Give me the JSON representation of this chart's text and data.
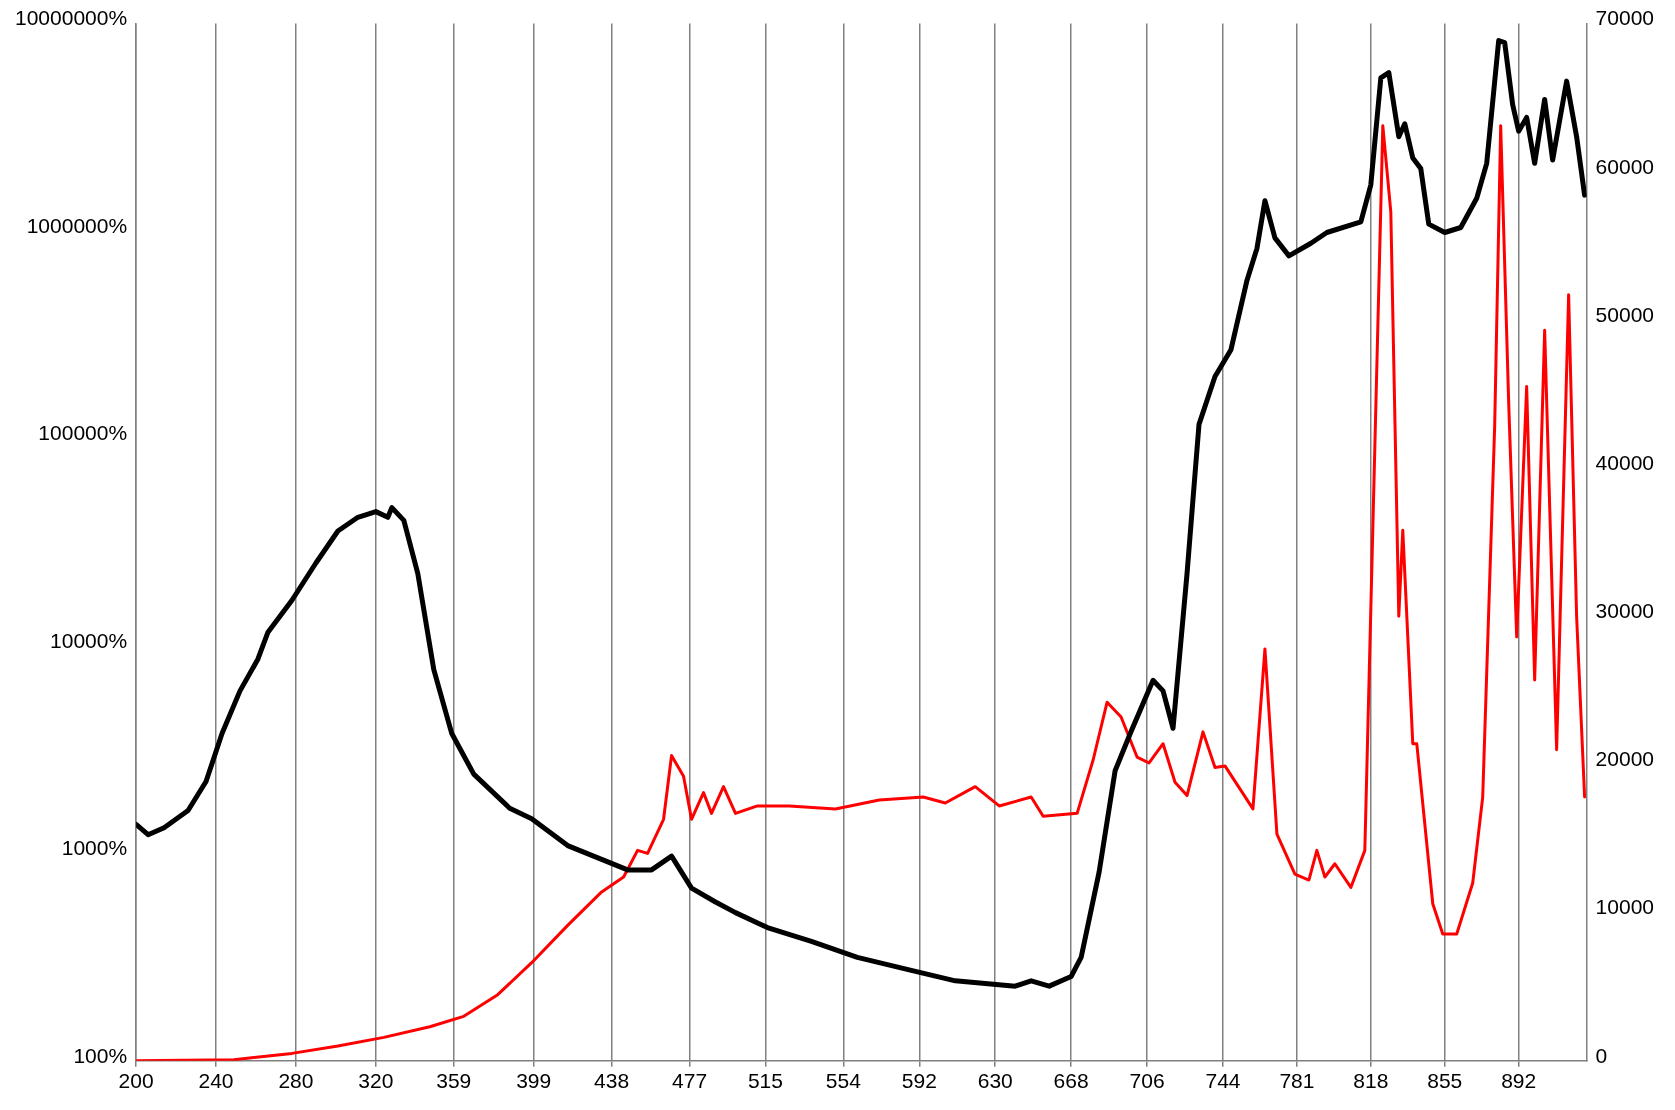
{
  "chart_data": {
    "type": "line",
    "xlim": [
      200,
      926
    ],
    "xticks": [
      200,
      240,
      280,
      320,
      359,
      399,
      438,
      477,
      515,
      554,
      592,
      630,
      668,
      706,
      744,
      781,
      818,
      855,
      892
    ],
    "ylim": [
      100,
      10000000
    ],
    "yticks": [
      {
        "value": 100,
        "label": "100%"
      },
      {
        "value": 1000,
        "label": "1000%"
      },
      {
        "value": 10000,
        "label": "10000%"
      },
      {
        "value": 100000,
        "label": "100000%"
      },
      {
        "value": 1000000,
        "label": "1000000%"
      },
      {
        "value": 10000000,
        "label": "10000000%"
      }
    ],
    "y2lim": [
      0,
      70000
    ],
    "y2ticks": [
      0,
      10000,
      20000,
      30000,
      40000,
      50000,
      60000,
      70000
    ],
    "log": "y",
    "grid": "x",
    "legend": false,
    "series": [
      {
        "type": "line",
        "axis": "y",
        "color": "#000000",
        "x": [
          200,
          206,
          214,
          226,
          235,
          243,
          252,
          261,
          266,
          278,
          290,
          301,
          311,
          320,
          326,
          328,
          334,
          341,
          349,
          358,
          369,
          387,
          398,
          416,
          433,
          446,
          458,
          468,
          478,
          490,
          500,
          516,
          538,
          561,
          588,
          610,
          640,
          648,
          657,
          668,
          673,
          682,
          690,
          698,
          709,
          714,
          719,
          726,
          732,
          740,
          748,
          756,
          761,
          765,
          770,
          777,
          788,
          796,
          813,
          818,
          823,
          827,
          832,
          835,
          839,
          843,
          847,
          855,
          863,
          871,
          876,
          882,
          885,
          889,
          892,
          896,
          900,
          905,
          909,
          916,
          921,
          925
        ],
        "values": [
          1380,
          1230,
          1330,
          1610,
          2220,
          3780,
          6070,
          8650,
          11640,
          16600,
          25100,
          35800,
          41700,
          44400,
          41700,
          46400,
          40300,
          22300,
          7690,
          3780,
          2410,
          1650,
          1470,
          1090,
          935,
          832,
          832,
          970,
          680,
          583,
          518,
          439,
          376,
          315,
          273,
          243,
          229,
          243,
          229,
          255,
          315,
          812,
          2500,
          3870,
          6830,
          6070,
          4010,
          22300,
          117000,
          199000,
          268000,
          578000,
          824000,
          1400000,
          927000,
          759000,
          873000,
          984000,
          1107000,
          1670000,
          5470000,
          5800000,
          2850000,
          3290000,
          2250000,
          2000000,
          1080000,
          984000,
          1040000,
          1440000,
          2120000,
          8280000,
          8100000,
          4060000,
          3030000,
          3530000,
          2120000,
          4310000,
          2200000,
          5280000,
          2850000,
          1490000
        ]
      },
      {
        "type": "line",
        "axis": "y2",
        "color": "#ff0000",
        "x": [
          200,
          249,
          278,
          301,
          324,
          347,
          364,
          381,
          398,
          416,
          433,
          444,
          451,
          456,
          464,
          468,
          474,
          478,
          484,
          488,
          494,
          500,
          511,
          527,
          550,
          572,
          594,
          605,
          620,
          632,
          648,
          654,
          671,
          679,
          686,
          693,
          701,
          707,
          714,
          720,
          726,
          734,
          740,
          745,
          759,
          765,
          771,
          780,
          787,
          791,
          795,
          800,
          808,
          815,
          824,
          828,
          832,
          834,
          839,
          841,
          849,
          854,
          861,
          869,
          874,
          880,
          883,
          887,
          891,
          896,
          900,
          905,
          911,
          917,
          921,
          925
        ],
        "values": [
          0,
          70,
          500,
          1000,
          1580,
          2300,
          3000,
          4460,
          6620,
          9140,
          11400,
          12400,
          14200,
          14000,
          16300,
          20600,
          19200,
          16300,
          18100,
          16700,
          18500,
          16700,
          17200,
          17200,
          17000,
          17600,
          17800,
          17400,
          18500,
          17200,
          17800,
          16500,
          16700,
          20300,
          24200,
          23200,
          20500,
          20100,
          21400,
          18800,
          17900,
          22200,
          19800,
          19900,
          17000,
          27800,
          15300,
          12600,
          12200,
          14200,
          12400,
          13300,
          11700,
          14200,
          63100,
          57300,
          30000,
          35800,
          21400,
          21400,
          10600,
          8560,
          8560,
          12000,
          17800,
          42900,
          63100,
          44400,
          28600,
          45500,
          25700,
          49300,
          21000,
          51700,
          30000,
          17800
        ]
      }
    ]
  }
}
